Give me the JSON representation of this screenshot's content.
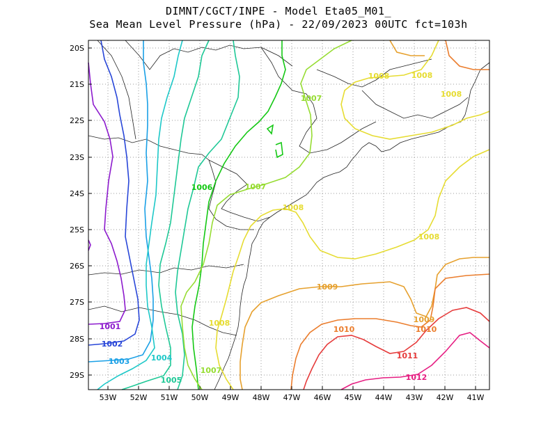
{
  "title": {
    "line1": "DIMNT/CGCT/INPE -  Model Eta05_M01_",
    "line2": "Sea Mean Level Pressure (hPa) - 22/09/2023 00UTC fct=103h"
  },
  "axes": {
    "lat_labels": [
      "20S",
      "21S",
      "22S",
      "23S",
      "24S",
      "25S",
      "26S",
      "27S",
      "28S",
      "29S"
    ],
    "lon_labels": [
      "53W",
      "52W",
      "51W",
      "50W",
      "49W",
      "48W",
      "47W",
      "46W",
      "45W",
      "44W",
      "43W",
      "42W",
      "41W"
    ]
  },
  "contours": [
    {
      "level": "1001",
      "color": "#8c1acd"
    },
    {
      "level": "1002",
      "color": "#2846d8"
    },
    {
      "level": "1003",
      "color": "#1aa0e6"
    },
    {
      "level": "1004",
      "color": "#1ec8c8"
    },
    {
      "level": "1005",
      "color": "#1ec896"
    },
    {
      "level": "1006",
      "color": "#14c814"
    },
    {
      "level": "1007",
      "color": "#96dc32"
    },
    {
      "level": "1008",
      "color": "#e6dc32"
    },
    {
      "level": "1009",
      "color": "#e6a02d"
    },
    {
      "level": "1010",
      "color": "#eb7d2d"
    },
    {
      "level": "1011",
      "color": "#e63c3c"
    },
    {
      "level": "1012",
      "color": "#e61e82"
    }
  ],
  "contour_labels": [
    {
      "text": "1001",
      "color": "#8c1acd"
    },
    {
      "text": "1002",
      "color": "#2846d8"
    },
    {
      "text": "1003",
      "color": "#1aa0e6"
    },
    {
      "text": "1004",
      "color": "#1ec8c8"
    },
    {
      "text": "1005",
      "color": "#1ec896"
    },
    {
      "text": "1006",
      "color": "#14c814"
    },
    {
      "text": "1007",
      "color": "#96dc32"
    },
    {
      "text": "1007",
      "color": "#96dc32"
    },
    {
      "text": "1007",
      "color": "#96dc32"
    },
    {
      "text": "1008",
      "color": "#e6dc32"
    },
    {
      "text": "1008",
      "color": "#e6dc32"
    },
    {
      "text": "1008",
      "color": "#e6dc32"
    },
    {
      "text": "1008",
      "color": "#e6dc32"
    },
    {
      "text": "1008",
      "color": "#e6dc32"
    },
    {
      "text": "1008",
      "color": "#e6dc32"
    },
    {
      "text": "1009",
      "color": "#e6a02d"
    },
    {
      "text": "1009",
      "color": "#e6a02d"
    },
    {
      "text": "1010",
      "color": "#eb7d2d"
    },
    {
      "text": "1010",
      "color": "#eb7d2d"
    },
    {
      "text": "1011",
      "color": "#e63c3c"
    },
    {
      "text": "1012",
      "color": "#e61e82"
    }
  ]
}
